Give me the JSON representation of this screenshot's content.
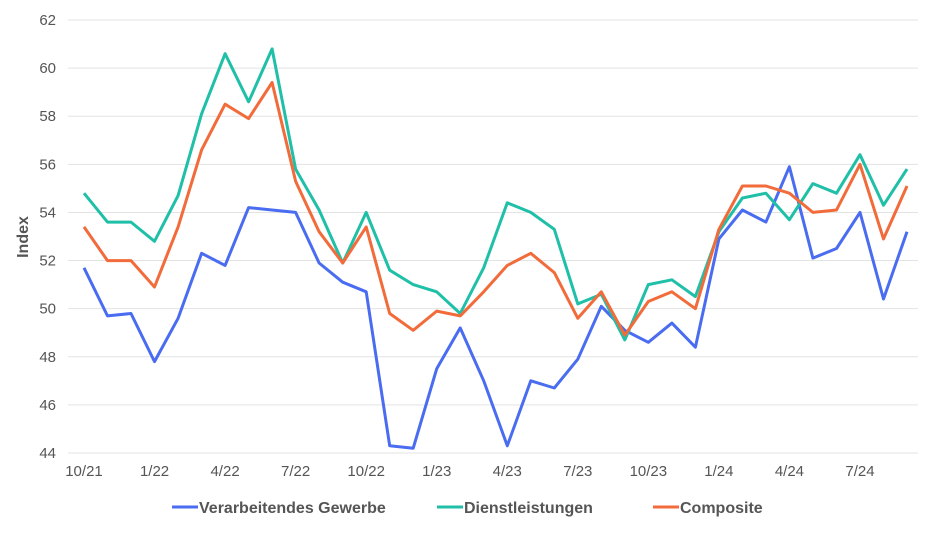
{
  "chart_data": {
    "type": "line",
    "title": "",
    "xlabel": "",
    "ylabel": "Index",
    "ylim": [
      44,
      62
    ],
    "yticks": [
      44,
      46,
      48,
      50,
      52,
      54,
      56,
      58,
      60,
      62
    ],
    "grid": true,
    "legend_position": "bottom",
    "x": [
      "10/21",
      "11/21",
      "12/21",
      "1/22",
      "2/22",
      "3/22",
      "4/22",
      "5/22",
      "6/22",
      "7/22",
      "8/22",
      "9/22",
      "10/22",
      "11/22",
      "12/22",
      "1/23",
      "2/23",
      "3/23",
      "4/23",
      "5/23",
      "6/23",
      "7/23",
      "8/23",
      "9/23",
      "10/23",
      "11/23",
      "12/23",
      "1/24",
      "2/24",
      "3/24",
      "4/24",
      "5/24",
      "6/24",
      "7/24",
      "8/24",
      "9/24"
    ],
    "xtick_labels": [
      "10/21",
      "1/22",
      "4/22",
      "7/22",
      "10/22",
      "1/23",
      "4/23",
      "7/23",
      "10/23",
      "1/24",
      "4/24",
      "7/24"
    ],
    "series": [
      {
        "name": "Verarbeitendes Gewerbe",
        "color": "#4a6cf0",
        "values": [
          51.7,
          49.7,
          49.8,
          47.8,
          49.6,
          52.3,
          51.8,
          54.2,
          54.1,
          54.0,
          51.9,
          51.1,
          50.7,
          44.3,
          44.2,
          47.5,
          49.2,
          47.0,
          44.3,
          47.0,
          46.7,
          47.9,
          50.1,
          49.1,
          48.6,
          49.4,
          48.4,
          52.9,
          54.1,
          53.6,
          55.9,
          52.1,
          52.5,
          54.0,
          50.4,
          53.2
        ]
      },
      {
        "name": "Dienstleistungen",
        "color": "#1fbfa8",
        "values": [
          54.8,
          53.6,
          53.6,
          52.8,
          54.7,
          58.1,
          60.6,
          58.6,
          60.8,
          55.8,
          54.1,
          51.9,
          54.0,
          51.6,
          51.0,
          50.7,
          49.8,
          51.7,
          54.4,
          54.0,
          53.3,
          50.2,
          50.6,
          48.7,
          51.0,
          51.2,
          50.5,
          53.2,
          54.6,
          54.8,
          53.7,
          55.2,
          54.8,
          56.4,
          54.3,
          55.8
        ]
      },
      {
        "name": "Composite",
        "color": "#f26b3a",
        "values": [
          53.4,
          52.0,
          52.0,
          50.9,
          53.4,
          56.6,
          58.5,
          57.9,
          59.4,
          55.3,
          53.2,
          51.9,
          53.4,
          49.8,
          49.1,
          49.9,
          49.7,
          50.7,
          51.8,
          52.3,
          51.5,
          49.6,
          50.7,
          48.9,
          50.3,
          50.7,
          50.0,
          53.3,
          55.1,
          55.1,
          54.8,
          54.0,
          54.1,
          56.0,
          52.9,
          55.1
        ]
      }
    ]
  }
}
